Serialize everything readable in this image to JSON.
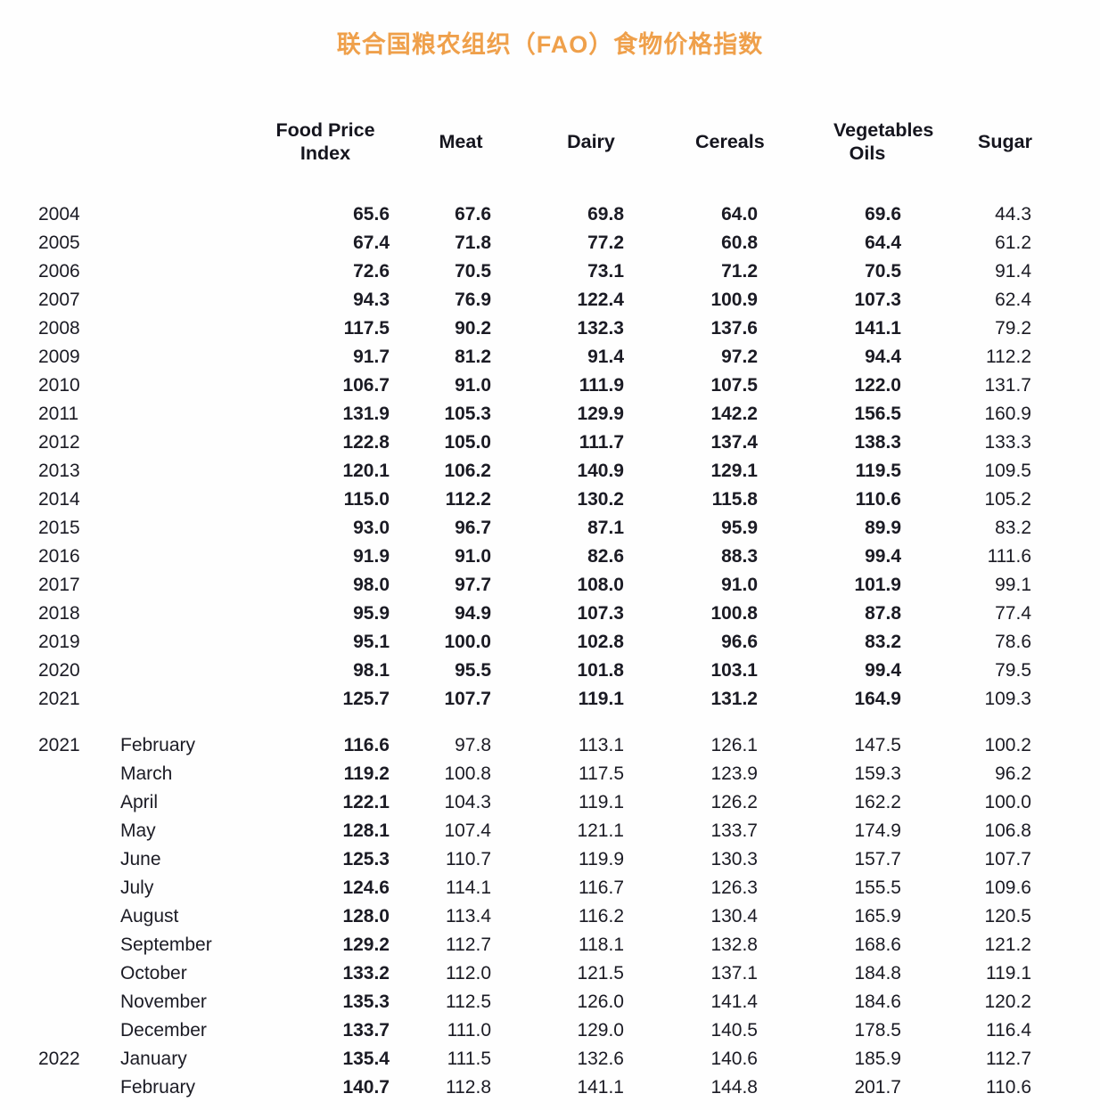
{
  "title": "联合国粮农组织（FAO）食物价格指数",
  "accent_color": "#EFA04B",
  "text_color": "#1B1B24",
  "chart_data": {
    "type": "table",
    "title": "联合国粮农组织（FAO）食物价格指数",
    "columns": [
      "Food Price Index",
      "Meat",
      "Dairy",
      "Cereals",
      "Vegetables Oils",
      "Sugar"
    ],
    "sections": [
      {
        "name": "annual",
        "rows": [
          {
            "year": "2004",
            "month": "",
            "values": [
              "65.6",
              "67.6",
              "69.8",
              "64.0",
              "69.6",
              "44.3"
            ]
          },
          {
            "year": "2005",
            "month": "",
            "values": [
              "67.4",
              "71.8",
              "77.2",
              "60.8",
              "64.4",
              "61.2"
            ]
          },
          {
            "year": "2006",
            "month": "",
            "values": [
              "72.6",
              "70.5",
              "73.1",
              "71.2",
              "70.5",
              "91.4"
            ]
          },
          {
            "year": "2007",
            "month": "",
            "values": [
              "94.3",
              "76.9",
              "122.4",
              "100.9",
              "107.3",
              "62.4"
            ]
          },
          {
            "year": "2008",
            "month": "",
            "values": [
              "117.5",
              "90.2",
              "132.3",
              "137.6",
              "141.1",
              "79.2"
            ]
          },
          {
            "year": "2009",
            "month": "",
            "values": [
              "91.7",
              "81.2",
              "91.4",
              "97.2",
              "94.4",
              "112.2"
            ]
          },
          {
            "year": "2010",
            "month": "",
            "values": [
              "106.7",
              "91.0",
              "111.9",
              "107.5",
              "122.0",
              "131.7"
            ]
          },
          {
            "year": "2011",
            "month": "",
            "values": [
              "131.9",
              "105.3",
              "129.9",
              "142.2",
              "156.5",
              "160.9"
            ]
          },
          {
            "year": "2012",
            "month": "",
            "values": [
              "122.8",
              "105.0",
              "111.7",
              "137.4",
              "138.3",
              "133.3"
            ]
          },
          {
            "year": "2013",
            "month": "",
            "values": [
              "120.1",
              "106.2",
              "140.9",
              "129.1",
              "119.5",
              "109.5"
            ]
          },
          {
            "year": "2014",
            "month": "",
            "values": [
              "115.0",
              "112.2",
              "130.2",
              "115.8",
              "110.6",
              "105.2"
            ]
          },
          {
            "year": "2015",
            "month": "",
            "values": [
              "93.0",
              "96.7",
              "87.1",
              "95.9",
              "89.9",
              "83.2"
            ]
          },
          {
            "year": "2016",
            "month": "",
            "values": [
              "91.9",
              "91.0",
              "82.6",
              "88.3",
              "99.4",
              "111.6"
            ]
          },
          {
            "year": "2017",
            "month": "",
            "values": [
              "98.0",
              "97.7",
              "108.0",
              "91.0",
              "101.9",
              "99.1"
            ]
          },
          {
            "year": "2018",
            "month": "",
            "values": [
              "95.9",
              "94.9",
              "107.3",
              "100.8",
              "87.8",
              "77.4"
            ]
          },
          {
            "year": "2019",
            "month": "",
            "values": [
              "95.1",
              "100.0",
              "102.8",
              "96.6",
              "83.2",
              "78.6"
            ]
          },
          {
            "year": "2020",
            "month": "",
            "values": [
              "98.1",
              "95.5",
              "101.8",
              "103.1",
              "99.4",
              "79.5"
            ]
          },
          {
            "year": "2021",
            "month": "",
            "values": [
              "125.7",
              "107.7",
              "119.1",
              "131.2",
              "164.9",
              "109.3"
            ]
          }
        ]
      },
      {
        "name": "monthly",
        "rows": [
          {
            "year": "2021",
            "month": "February",
            "values": [
              "116.6",
              "97.8",
              "113.1",
              "126.1",
              "147.5",
              "100.2"
            ]
          },
          {
            "year": "",
            "month": "March",
            "values": [
              "119.2",
              "100.8",
              "117.5",
              "123.9",
              "159.3",
              "96.2"
            ]
          },
          {
            "year": "",
            "month": "April",
            "values": [
              "122.1",
              "104.3",
              "119.1",
              "126.2",
              "162.2",
              "100.0"
            ]
          },
          {
            "year": "",
            "month": "May",
            "values": [
              "128.1",
              "107.4",
              "121.1",
              "133.7",
              "174.9",
              "106.8"
            ]
          },
          {
            "year": "",
            "month": "June",
            "values": [
              "125.3",
              "110.7",
              "119.9",
              "130.3",
              "157.7",
              "107.7"
            ]
          },
          {
            "year": "",
            "month": "July",
            "values": [
              "124.6",
              "114.1",
              "116.7",
              "126.3",
              "155.5",
              "109.6"
            ]
          },
          {
            "year": "",
            "month": "August",
            "values": [
              "128.0",
              "113.4",
              "116.2",
              "130.4",
              "165.9",
              "120.5"
            ]
          },
          {
            "year": "",
            "month": "September",
            "values": [
              "129.2",
              "112.7",
              "118.1",
              "132.8",
              "168.6",
              "121.2"
            ]
          },
          {
            "year": "",
            "month": "October",
            "values": [
              "133.2",
              "112.0",
              "121.5",
              "137.1",
              "184.8",
              "119.1"
            ]
          },
          {
            "year": "",
            "month": "November",
            "values": [
              "135.3",
              "112.5",
              "126.0",
              "141.4",
              "184.6",
              "120.2"
            ]
          },
          {
            "year": "",
            "month": "December",
            "values": [
              "133.7",
              "111.0",
              "129.0",
              "140.5",
              "178.5",
              "116.4"
            ]
          },
          {
            "year": "2022",
            "month": "January",
            "values": [
              "135.4",
              "111.5",
              "132.6",
              "140.6",
              "185.9",
              "112.7"
            ]
          },
          {
            "year": "",
            "month": "February",
            "values": [
              "140.7",
              "112.8",
              "141.1",
              "144.8",
              "201.7",
              "110.6"
            ]
          }
        ]
      }
    ]
  }
}
